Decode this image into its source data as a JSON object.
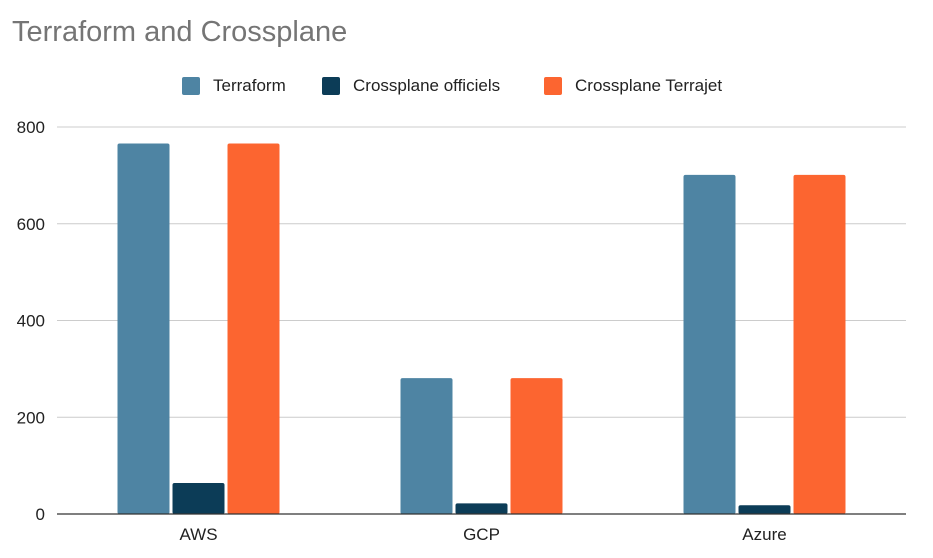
{
  "chart_data": {
    "type": "bar",
    "title": "Terraform and Crossplane",
    "categories": [
      "AWS",
      "GCP",
      "Azure"
    ],
    "series": [
      {
        "name": "Terraform",
        "values": [
          766,
          281,
          701
        ],
        "color": "#4e84a3"
      },
      {
        "name": "Crossplane officiels",
        "values": [
          64,
          22,
          18
        ],
        "color": "#0c3c57"
      },
      {
        "name": "Crossplane Terrajet",
        "values": [
          766,
          281,
          701
        ],
        "color": "#fc6530"
      }
    ],
    "ylim": [
      0,
      800
    ],
    "yticks": [
      0,
      200,
      400,
      600,
      800
    ],
    "xlabel": "",
    "ylabel": "",
    "grid": true,
    "legend_position": "top-center"
  }
}
